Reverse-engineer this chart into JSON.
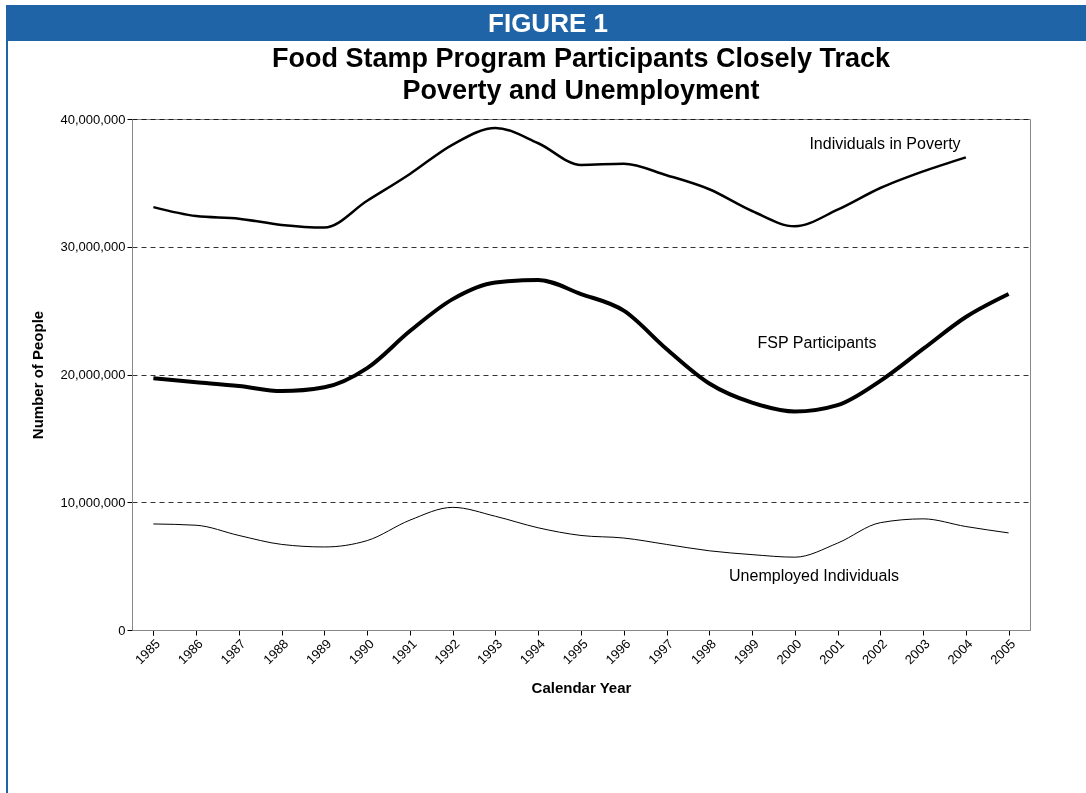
{
  "chart_data": {
    "type": "line",
    "title": "Food Stamp Program Participants Closely Track Poverty and Unemployment",
    "xlabel": "Calendar Year",
    "ylabel": "Number of People",
    "annotations": [
      "FIGURE 1"
    ],
    "categories": [
      "1985",
      "1986",
      "1987",
      "1988",
      "1989",
      "1990",
      "1991",
      "1992",
      "1993",
      "1994",
      "1995",
      "1996",
      "1997",
      "1998",
      "1999",
      "2000",
      "2001",
      "2002",
      "2003",
      "2004",
      "2005"
    ],
    "series": [
      {
        "name": "Individuals in Poverty",
        "color": "#000000",
        "values": [
          33100000,
          32400000,
          32200000,
          31700000,
          31500000,
          33600000,
          35700000,
          38000000,
          39300000,
          38100000,
          36400000,
          36500000,
          35600000,
          34500000,
          32800000,
          31600000,
          32900000,
          34600000,
          35900000,
          37000000,
          null
        ]
      },
      {
        "name": "FSP Participants",
        "color": "#000000",
        "values": [
          19700000,
          19400000,
          19100000,
          18700000,
          19000000,
          20500000,
          23400000,
          25900000,
          27200000,
          27400000,
          26300000,
          25000000,
          22000000,
          19300000,
          17800000,
          17100000,
          17600000,
          19500000,
          22000000,
          24500000,
          26300000
        ]
      },
      {
        "name": "Unemployed Individuals",
        "color": "#000000",
        "values": [
          8300000,
          8200000,
          7400000,
          6700000,
          6500000,
          7000000,
          8600000,
          9600000,
          8900000,
          8000000,
          7400000,
          7200000,
          6700000,
          6200000,
          5900000,
          5700000,
          6800000,
          8400000,
          8700000,
          8100000,
          7600000
        ]
      }
    ],
    "ylim": [
      0,
      40000000
    ],
    "yticks": [
      0,
      {
        "value": 10000000,
        "label": "10,000,000"
      },
      {
        "value": 20000000,
        "label": "20,000,000"
      },
      {
        "value": 30000000,
        "label": "30,000,000"
      },
      {
        "value": 40000000,
        "label": "40,000,000"
      }
    ],
    "grid": "y",
    "legend": false,
    "marker": "none",
    "line_style": "solid"
  }
}
